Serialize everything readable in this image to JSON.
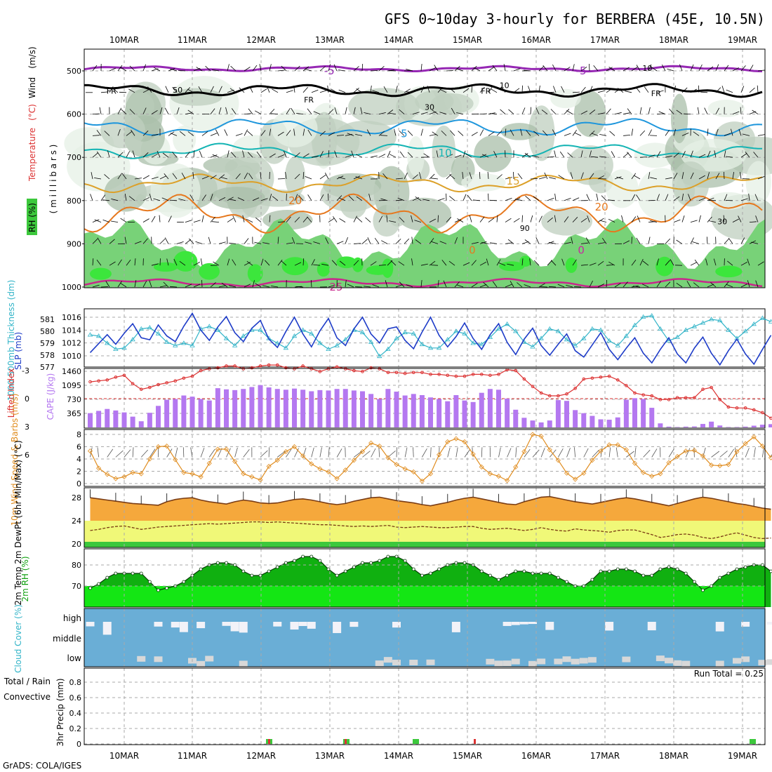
{
  "chart_data": {
    "title": "GFS 0~10day 3-hourly for BERBERA (45E, 10.5N)",
    "credit": "GrADS: COLA/IGES",
    "dates": [
      "10MAR",
      "11MAR",
      "12MAR",
      "13MAR",
      "14MAR",
      "15MAR",
      "16MAR",
      "17MAR",
      "18MAR",
      "19MAR"
    ],
    "colors": {
      "rh": "#3cc83c",
      "temp_fill": "#f5a83c",
      "dew_fill": "#f0f878",
      "cloud_bg": "#6aaed6",
      "slp": "#1e3cc8",
      "thick": "#32b4c8",
      "lifted": "#dc3232",
      "cape": "#b478f0",
      "wind": "#e08c1e"
    },
    "panels": [
      {
        "type": "contour",
        "name": "upper-air",
        "ylabel_parts": [
          "RH (%)",
          "Temperature",
          "(°C)",
          "Wind",
          "(m/s)"
        ],
        "ylabel_unit": "( m i l l i b a r s )",
        "yticks": [
          "500",
          "600",
          "700",
          "800",
          "900",
          "1000"
        ],
        "contour_labels": [
          {
            "text": "-5",
            "color": "#9628b4",
            "x": 0.36,
            "p": 500
          },
          {
            "text": "-5",
            "color": "#9628b4",
            "x": 0.73,
            "p": 500
          },
          {
            "text": "FR",
            "color": "#000000",
            "x": 0.04,
            "p": 545
          },
          {
            "text": "FR",
            "color": "#000000",
            "x": 0.33,
            "p": 565
          },
          {
            "text": "FR",
            "color": "#000000",
            "x": 0.59,
            "p": 545
          },
          {
            "text": "FR",
            "color": "#000000",
            "x": 0.84,
            "p": 550
          },
          {
            "text": "5",
            "color": "#1e96dc",
            "x": 0.47,
            "p": 645
          },
          {
            "text": "10",
            "color": "#14b4b4",
            "x": 0.53,
            "p": 690
          },
          {
            "text": "15",
            "color": "#dca028",
            "x": 0.63,
            "p": 755
          },
          {
            "text": "20",
            "color": "#e6781e",
            "x": 0.31,
            "p": 800
          },
          {
            "text": "20",
            "color": "#e6781e",
            "x": 0.76,
            "p": 815
          },
          {
            "text": "0",
            "color": "#e6781e",
            "x": 0.57,
            "p": 915
          },
          {
            "text": "0",
            "color": "#c828a0",
            "x": 0.73,
            "p": 915
          },
          {
            "text": "25",
            "color": "#c8288c",
            "x": 0.37,
            "p": 1000
          }
        ],
        "rh_labels": [
          {
            "text": "50",
            "x": 0.13,
            "p": 550
          },
          {
            "text": "30",
            "x": 0.5,
            "p": 590
          },
          {
            "text": "10",
            "x": 0.82,
            "p": 500
          },
          {
            "text": "10",
            "x": 0.61,
            "p": 540
          },
          {
            "text": "30",
            "x": 0.93,
            "p": 855
          },
          {
            "text": "90",
            "x": 0.64,
            "p": 870
          }
        ]
      },
      {
        "type": "dual-line",
        "name": "thickness-slp",
        "ylabel_left": "1000-500mb Thickness (dm)",
        "ylabel_right": "SLP (mb)",
        "yticks_left": [
          "581",
          "580",
          "579",
          "578",
          "577"
        ],
        "yticks_right": [
          "1016",
          "1014",
          "1012",
          "1010"
        ],
        "thickness": [
          579.7,
          579.6,
          579.0,
          578.5,
          578.6,
          579.3,
          580.2,
          580.3,
          579.8,
          579.1,
          578.8,
          579.0,
          578.8,
          580.2,
          580.4,
          580.1,
          579.4,
          578.8,
          579.6,
          580.1,
          580.1,
          579.4,
          579.0,
          578.6,
          579.6,
          580.1,
          579.8,
          579.0,
          578.5,
          578.8,
          579.3,
          580.1,
          579.9,
          579.1,
          577.9,
          578.5,
          579.4,
          579.9,
          579.8,
          578.9,
          578.6,
          578.6,
          579.3,
          580.0,
          579.8,
          579.0,
          578.9,
          579.5,
          580.2,
          580.6,
          580.0,
          579.1,
          578.7,
          579.4,
          580.2,
          580.0,
          579.3,
          578.8,
          579.4,
          580.2,
          580.1,
          579.2,
          578.8,
          579.6,
          580.5,
          581.2,
          581.3,
          580.2,
          579.2,
          579.5,
          580.1,
          580.4,
          580.7,
          581.0,
          580.9,
          580.1,
          579.4,
          580.0,
          580.6,
          581.1,
          580.8
        ],
        "slp": [
          1010.5,
          1011.9,
          1013.3,
          1011.8,
          1013.5,
          1015.0,
          1012.8,
          1012.5,
          1014.8,
          1013.1,
          1012.2,
          1014.6,
          1016.6,
          1014.0,
          1012.4,
          1014.5,
          1016.1,
          1013.6,
          1012.2,
          1014.3,
          1015.5,
          1012.6,
          1011.3,
          1013.8,
          1016.0,
          1013.4,
          1011.4,
          1013.9,
          1015.8,
          1012.8,
          1011.6,
          1014.2,
          1016.0,
          1013.4,
          1012.0,
          1014.2,
          1014.5,
          1012.4,
          1011.1,
          1013.7,
          1016.0,
          1013.2,
          1011.4,
          1013.0,
          1015.1,
          1012.7,
          1011.0,
          1013.3,
          1015.0,
          1012.1,
          1010.2,
          1012.6,
          1014.3,
          1011.6,
          1010.1,
          1011.8,
          1013.4,
          1010.8,
          1009.8,
          1011.7,
          1013.6,
          1011.0,
          1009.4,
          1011.2,
          1012.8,
          1010.4,
          1008.9,
          1011.0,
          1012.8,
          1010.3,
          1008.9,
          1011.2,
          1012.9,
          1010.4,
          1008.6,
          1010.8,
          1012.6,
          1010.3,
          1008.7,
          1011.0,
          1013.2
        ]
      },
      {
        "type": "bar-line",
        "name": "cape-lifted",
        "ylabel_left": "Lifted Index",
        "ylabel_right": "CAPE (J/kg)",
        "yticks_left": [
          "-3",
          "0",
          "3",
          "6"
        ],
        "yticks_right": [
          "1460",
          "1095",
          "730",
          "365"
        ],
        "cape": [
          370,
          430,
          480,
          440,
          390,
          280,
          160,
          380,
          560,
          720,
          740,
          830,
          800,
          740,
          700,
          1020,
          990,
          970,
          1000,
          1050,
          1100,
          1040,
          1000,
          980,
          1010,
          980,
          940,
          970,
          960,
          1000,
          1000,
          960,
          940,
          870,
          740,
          1000,
          930,
          830,
          870,
          840,
          780,
          740,
          680,
          840,
          700,
          660,
          900,
          1000,
          980,
          750,
          460,
          250,
          180,
          130,
          180,
          710,
          690,
          450,
          370,
          300,
          210,
          200,
          260,
          720,
          760,
          740,
          510,
          105,
          20,
          10,
          20,
          25,
          90,
          150,
          50,
          10,
          10,
          20,
          45,
          70,
          85
        ],
        "lifted": [
          -1.8,
          -1.9,
          -2.0,
          -2.3,
          -2.5,
          -1.6,
          -1.0,
          -1.2,
          -1.5,
          -1.7,
          -1.9,
          -2.2,
          -2.4,
          -3.0,
          -3.2,
          -3.3,
          -3.5,
          -3.5,
          -3.2,
          -3.3,
          -3.5,
          -3.6,
          -3.6,
          -3.3,
          -3.2,
          -3.5,
          -3.2,
          -2.9,
          -3.2,
          -3.4,
          -3.2,
          -3.0,
          -2.9,
          -3.3,
          -3.2,
          -2.8,
          -2.8,
          -2.7,
          -2.8,
          -2.8,
          -2.6,
          -2.6,
          -2.5,
          -2.4,
          -2.4,
          -2.6,
          -2.6,
          -2.5,
          -2.6,
          -3.1,
          -3.0,
          -2.1,
          -1.3,
          -0.6,
          -0.3,
          -0.3,
          -0.5,
          -1.1,
          -2.1,
          -2.2,
          -2.3,
          -2.4,
          -2.0,
          -1.4,
          -0.6,
          -0.4,
          -0.3,
          0.1,
          0.1,
          -0.1,
          -0.1,
          -0.1,
          -1.0,
          -1.2,
          0.1,
          0.9,
          1.0,
          1.0,
          1.2,
          1.5,
          2.1
        ]
      },
      {
        "type": "line-barbs",
        "name": "wind10m",
        "ylabel": "10m Wind Speed & Barbs (m/s)",
        "yticks": [
          "8",
          "6",
          "4",
          "2",
          "0"
        ],
        "speed": [
          5.3,
          2.5,
          1.5,
          0.8,
          1.1,
          1.8,
          1.6,
          4.0,
          6.0,
          6.1,
          3.9,
          1.8,
          1.6,
          1.1,
          3.3,
          5.6,
          5.6,
          3.6,
          1.6,
          1.1,
          0.6,
          2.8,
          3.8,
          5.2,
          6.0,
          4.5,
          3.2,
          2.4,
          1.9,
          0.8,
          2.2,
          3.8,
          5.2,
          6.6,
          6.1,
          4.2,
          3.1,
          2.4,
          1.9,
          0.4,
          1.6,
          4.7,
          6.8,
          7.3,
          6.8,
          4.8,
          2.7,
          1.6,
          1.2,
          0.5,
          2.7,
          5.2,
          8.0,
          7.7,
          5.5,
          3.8,
          1.7,
          0.7,
          1.7,
          3.8,
          5.3,
          6.3,
          6.3,
          5.5,
          3.3,
          1.8,
          1.2,
          1.6,
          3.4,
          4.4,
          5.3,
          5.4,
          4.5,
          3.0,
          2.9,
          3.1,
          5.2,
          6.5,
          7.6,
          6.1,
          4.2
        ]
      },
      {
        "type": "temp",
        "name": "temp2m",
        "ylabel": "2m Temp 2m DewPt (6hr Min/Max) (°C)",
        "yticks": [
          "28",
          "24",
          "20"
        ],
        "temp": [
          28.0,
          27.8,
          27.6,
          27.4,
          27.2,
          27.0,
          26.9,
          26.8,
          26.7,
          27.3,
          27.7,
          27.9,
          28.0,
          27.6,
          27.3,
          27.1,
          26.9,
          27.3,
          27.6,
          27.4,
          27.1,
          27.0,
          27.1,
          27.4,
          27.7,
          27.8,
          27.6,
          27.3,
          27.0,
          26.8,
          27.0,
          27.4,
          27.7,
          28.0,
          28.1,
          27.8,
          27.5,
          27.3,
          27.1,
          26.8,
          26.6,
          26.9,
          27.2,
          27.6,
          27.9,
          28.1,
          27.8,
          27.5,
          27.2,
          26.9,
          26.8,
          27.3,
          27.7,
          28.1,
          28.2,
          27.9,
          27.6,
          27.3,
          27.1,
          26.9,
          27.2,
          27.5,
          27.8,
          28.0,
          27.8,
          27.5,
          27.2,
          26.9,
          26.6,
          27.0,
          27.4,
          27.8,
          28.1,
          27.9,
          27.6,
          27.3,
          27.0,
          26.8,
          26.5,
          26.2,
          26.0
        ],
        "dewpt": [
          22.3,
          22.5,
          22.8,
          23.0,
          23.1,
          22.8,
          22.5,
          22.7,
          22.9,
          23.0,
          23.1,
          23.2,
          23.3,
          23.4,
          23.5,
          23.4,
          23.5,
          23.6,
          23.7,
          23.8,
          23.8,
          23.7,
          23.8,
          23.7,
          23.6,
          23.5,
          23.4,
          23.3,
          23.3,
          23.2,
          23.1,
          23.0,
          23.1,
          23.0,
          23.1,
          23.2,
          22.9,
          22.8,
          22.9,
          23.0,
          22.9,
          22.8,
          22.8,
          22.9,
          23.0,
          23.0,
          22.7,
          22.5,
          22.6,
          22.7,
          22.5,
          22.3,
          22.5,
          22.8,
          22.5,
          22.3,
          22.2,
          22.6,
          22.4,
          22.3,
          22.2,
          22.0,
          22.3,
          22.4,
          22.4,
          22.0,
          21.6,
          21.1,
          21.3,
          21.6,
          21.7,
          21.5,
          21.1,
          20.9,
          21.2,
          21.6,
          21.9,
          21.5,
          21.1,
          20.9,
          21.0
        ]
      },
      {
        "type": "area",
        "name": "rh2m",
        "ylabel": "2m RH (%)",
        "yticks": [
          "80",
          "70"
        ],
        "rh": [
          69,
          71,
          74,
          76,
          76,
          76,
          76,
          72,
          68,
          69,
          70,
          72,
          75,
          78,
          80,
          81,
          81,
          80,
          77,
          75,
          75,
          77,
          79,
          81,
          82,
          84,
          84,
          82,
          78,
          75,
          77,
          79,
          81,
          81,
          82,
          84,
          84,
          82,
          78,
          75,
          76,
          78,
          80,
          81,
          81,
          80,
          77,
          75,
          73,
          75,
          77,
          77,
          76,
          76,
          76,
          74,
          72,
          70,
          70,
          73,
          77,
          77,
          78,
          78,
          77,
          75,
          75,
          78,
          79,
          78,
          76,
          72,
          68,
          70,
          74,
          76,
          78,
          79,
          80,
          80,
          77
        ]
      },
      {
        "type": "cloud",
        "name": "cloud-cover",
        "ylabel": "Cloud Cover (%)",
        "levels": [
          "high",
          "middle",
          "low"
        ]
      },
      {
        "type": "precip",
        "name": "precip",
        "ylabel_left": "Total / Rain",
        "ylabel_left2": "Convective",
        "ylabel": "3hr Precip (mm)",
        "yticks": [
          "0.8",
          "0.6",
          "0.4",
          "0.2",
          "0"
        ],
        "run_total": "Run Total = 0.25"
      }
    ]
  }
}
